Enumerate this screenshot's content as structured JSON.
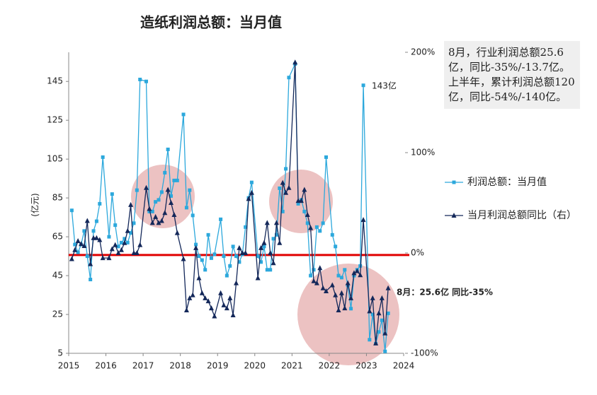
{
  "chart_data": {
    "type": "line",
    "title": "造纸利润总额：当月值",
    "y_label": "(亿元)",
    "xlim": [
      2015,
      2024
    ],
    "xticks": [
      2015,
      2016,
      2017,
      2018,
      2019,
      2020,
      2021,
      2022,
      2023,
      2024
    ],
    "ylim": [
      5,
      160
    ],
    "yticks": [
      5,
      25,
      45,
      65,
      85,
      105,
      125,
      145
    ],
    "y2lim": [
      -100,
      200
    ],
    "y2ticks": [
      {
        "value": -100,
        "label": "-100%"
      },
      {
        "value": 0,
        "label": "0%"
      },
      {
        "value": 100,
        "label": "100%"
      },
      {
        "value": 200,
        "label": "200%"
      }
    ],
    "legend": "right",
    "x": [
      "2015-02",
      "2015-03",
      "2015-04",
      "2015-05",
      "2015-06",
      "2015-07",
      "2015-08",
      "2015-09",
      "2015-10",
      "2015-11",
      "2015-12",
      "2016-02",
      "2016-03",
      "2016-04",
      "2016-05",
      "2016-06",
      "2016-07",
      "2016-08",
      "2016-09",
      "2016-10",
      "2016-11",
      "2016-12",
      "2017-02",
      "2017-03",
      "2017-04",
      "2017-05",
      "2017-06",
      "2017-07",
      "2017-08",
      "2017-09",
      "2017-10",
      "2017-11",
      "2017-12",
      "2018-02",
      "2018-03",
      "2018-04",
      "2018-05",
      "2018-06",
      "2018-07",
      "2018-08",
      "2018-09",
      "2018-10",
      "2018-11",
      "2018-12",
      "2019-02",
      "2019-03",
      "2019-04",
      "2019-05",
      "2019-06",
      "2019-07",
      "2019-08",
      "2019-09",
      "2019-10",
      "2019-11",
      "2019-12",
      "2020-02",
      "2020-03",
      "2020-04",
      "2020-05",
      "2020-06",
      "2020-07",
      "2020-08",
      "2020-09",
      "2020-10",
      "2020-11",
      "2020-12",
      "2021-02",
      "2021-03",
      "2021-04",
      "2021-05",
      "2021-06",
      "2021-07",
      "2021-08",
      "2021-09",
      "2021-10",
      "2021-11",
      "2021-12",
      "2022-02",
      "2022-03",
      "2022-04",
      "2022-05",
      "2022-06",
      "2022-07",
      "2022-08",
      "2022-09",
      "2022-10",
      "2022-11",
      "2022-12",
      "2023-02",
      "2023-03",
      "2023-04",
      "2023-05",
      "2023-06",
      "2023-07",
      "2023-08"
    ],
    "series": [
      {
        "name": "利润总额：当月值",
        "color": "#2ca8dc",
        "marker": "square",
        "values": [
          78.6,
          61,
          57,
          61,
          68,
          55,
          43,
          68,
          73,
          82,
          106,
          65,
          87,
          71,
          60,
          62,
          64,
          62,
          67,
          72,
          89,
          146,
          145,
          78,
          78,
          83,
          84,
          88,
          98,
          110,
          86,
          94,
          94,
          128,
          80,
          89,
          76,
          61,
          55,
          53,
          48,
          66,
          54,
          56,
          74,
          55,
          45,
          50,
          60,
          55,
          52,
          56,
          70,
          85,
          93,
          55,
          52,
          60,
          48,
          48,
          64,
          66,
          90,
          78,
          100,
          147,
          154,
          82,
          84,
          78,
          72,
          45,
          48,
          70,
          68,
          72,
          106,
          66,
          60,
          45,
          44,
          48,
          40,
          28,
          45,
          48,
          50,
          143,
          12,
          25,
          10,
          16,
          22,
          6,
          25.6
        ]
      },
      {
        "name": "当月利润总额同比（右）",
        "color": "#14285a",
        "marker": "triangle",
        "axis": "y2",
        "values": [
          -6,
          3,
          12,
          9,
          7,
          32,
          -11,
          15,
          15,
          13,
          -5,
          -5,
          4,
          8,
          0,
          3,
          10,
          22,
          48,
          0,
          0,
          8,
          65,
          44,
          30,
          36,
          30,
          32,
          40,
          63,
          50,
          38,
          20,
          -6,
          -57,
          -45,
          -42,
          5,
          -25,
          -40,
          -45,
          -48,
          -55,
          -63,
          -40,
          -52,
          -55,
          -45,
          -62,
          -30,
          5,
          0,
          0,
          54,
          60,
          -25,
          5,
          10,
          30,
          0,
          -10,
          30,
          10,
          70,
          60,
          65,
          190,
          52,
          52,
          63,
          38,
          25,
          -28,
          -30,
          -15,
          -35,
          -38,
          -32,
          -42,
          -57,
          -40,
          -55,
          -30,
          -45,
          -20,
          -18,
          -22,
          33,
          -58,
          -45,
          -90,
          -60,
          -45,
          -80,
          -35
        ]
      }
    ],
    "ref_line": {
      "axis": "y2",
      "value": -2,
      "color": "#e00000"
    },
    "annotations": [
      "143亿",
      "8月：25.6亿 同比-35%"
    ],
    "note": "8月，行业利润总额25.6亿，同比-35%/-13.7亿。上半年，累计利润总额120亿，同比-54%/-140亿。"
  }
}
